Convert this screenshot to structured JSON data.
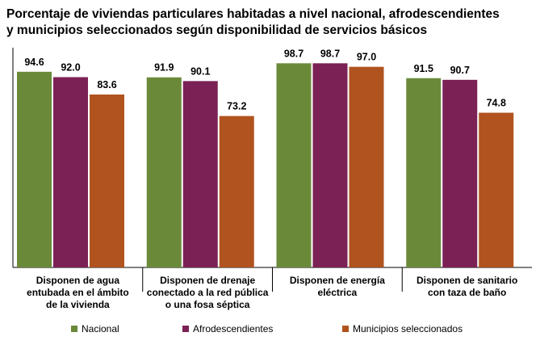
{
  "chart_data": {
    "type": "bar",
    "title": "Porcentaje de viviendas particulares habitadas a nivel nacional, afrodescendientes y municipios seleccionados según disponibilidad de servicios básicos",
    "title_lines": [
      "Porcentaje de viviendas particulares habitadas a nivel nacional, afrodescendientes",
      "y municipios seleccionados según disponibilidad de servicios básicos"
    ],
    "categories": [
      [
        "Disponen de agua",
        "entubada en el ámbito",
        "de la vivienda"
      ],
      [
        "Disponen de drenaje",
        "conectado a la red pública",
        "o una fosa séptica"
      ],
      [
        "Disponen de energía",
        "eléctrica"
      ],
      [
        "Disponen de sanitario",
        "con taza de baño"
      ]
    ],
    "series": [
      {
        "name": "Nacional",
        "color": "#6a8a3a",
        "values": [
          94.6,
          91.9,
          98.7,
          91.5
        ]
      },
      {
        "name": "Afrodescendientes",
        "color": "#7b2155",
        "values": [
          92.0,
          90.1,
          98.7,
          90.7
        ]
      },
      {
        "name": "Municipios seleccionados",
        "color": "#b0531f",
        "values": [
          83.6,
          73.2,
          97.0,
          74.8
        ]
      }
    ],
    "value_labels": [
      [
        "94.6",
        "91.9",
        "98.7",
        "91.5"
      ],
      [
        "92.0",
        "90.1",
        "98.7",
        "90.7"
      ],
      [
        "83.6",
        "73.2",
        "97.0",
        "74.8"
      ]
    ],
    "ylim": [
      0,
      100
    ],
    "grid": false,
    "legend_position": "bottom"
  }
}
